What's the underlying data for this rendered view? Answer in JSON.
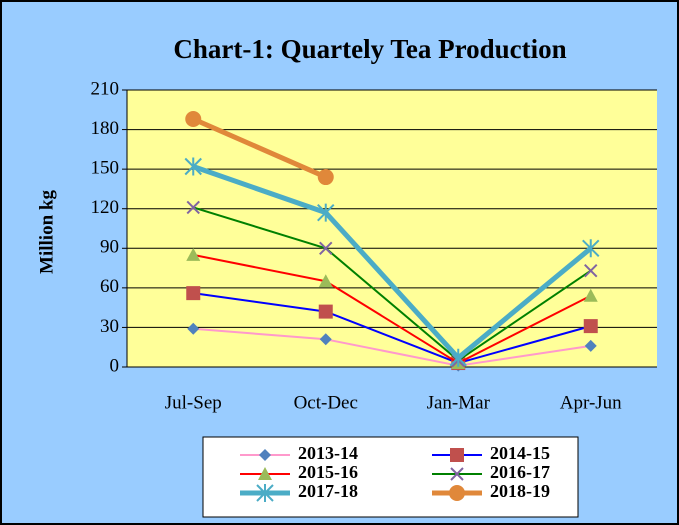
{
  "chart_data": {
    "type": "line",
    "title": "Chart-1: Quartely Tea Production",
    "y_label": "Million kg",
    "categories": [
      "Jul-Sep",
      "Oct-Dec",
      "Jan-Mar",
      "Apr-Jun"
    ],
    "ylim": [
      0,
      210
    ],
    "yticks": [
      0,
      30,
      60,
      90,
      120,
      150,
      180,
      210
    ],
    "grid": true,
    "legend": "bottom",
    "series": [
      {
        "name": "2013-14",
        "color": "#ff99cc",
        "marker_color": "#4f81bd",
        "marker": "diamond",
        "line_width": 2,
        "values": [
          29,
          21,
          1,
          16
        ]
      },
      {
        "name": "2014-15",
        "color": "#0000ff",
        "marker_color": "#c0504d",
        "marker": "square",
        "line_width": 2,
        "values": [
          56,
          42,
          3,
          31
        ]
      },
      {
        "name": "2015-16",
        "color": "#ff0000",
        "marker_color": "#9bbb59",
        "marker": "triangle",
        "line_width": 2,
        "values": [
          85,
          65,
          3,
          54
        ]
      },
      {
        "name": "2016-17",
        "color": "#008000",
        "marker_color": "#8064a2",
        "marker": "x",
        "line_width": 2,
        "values": [
          121,
          90,
          5,
          73
        ]
      },
      {
        "name": "2017-18",
        "color": "#4bacc6",
        "marker_color": "#4bacc6",
        "marker": "star",
        "line_width": 5,
        "values": [
          152,
          117,
          7,
          90
        ]
      },
      {
        "name": "2018-19",
        "color": "#e0883a",
        "marker_color": "#e0883a",
        "marker": "circle",
        "line_width": 5,
        "values": [
          188,
          144,
          null,
          null
        ]
      }
    ]
  }
}
